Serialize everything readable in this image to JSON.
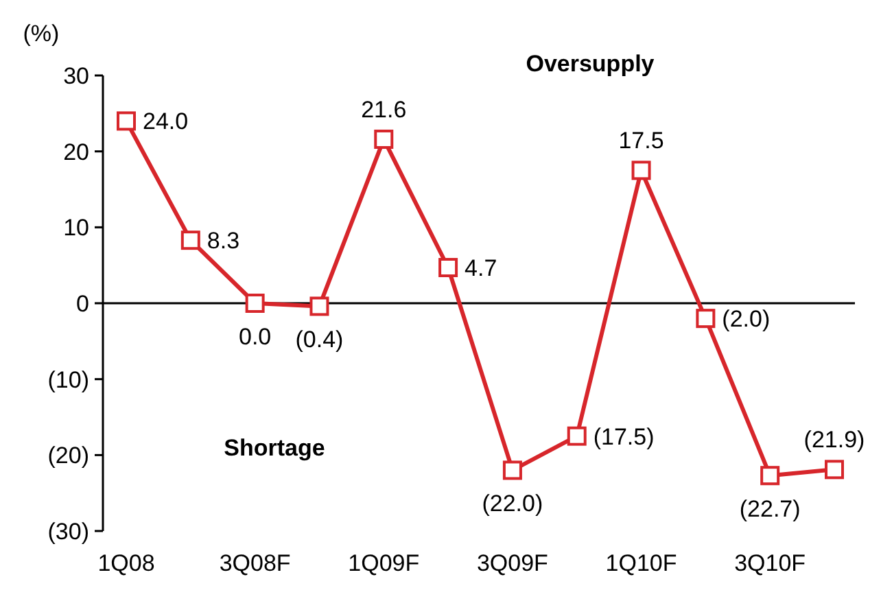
{
  "chart_data": {
    "type": "line",
    "ylabel": "(%)",
    "categories": [
      "1Q08",
      null,
      "3Q08F",
      null,
      "1Q09F",
      null,
      "3Q09F",
      null,
      "1Q10F",
      null,
      "3Q10F",
      null
    ],
    "series": [
      {
        "color": "#d7262b",
        "values": [
          24.0,
          8.3,
          0.0,
          -0.4,
          21.6,
          4.7,
          -22.0,
          -17.5,
          17.5,
          -2.0,
          -22.7,
          -21.9
        ],
        "value_labels": [
          "24.0",
          "8.3",
          "0.0",
          "(0.4)",
          "21.6",
          "4.7",
          "(22.0)",
          "(17.5)",
          "17.5",
          "(2.0)",
          "(22.7)",
          "(21.9)"
        ]
      }
    ],
    "ylim": [
      -30,
      30
    ],
    "yticks": [
      {
        "value": -30,
        "label": "(30)"
      },
      {
        "value": -20,
        "label": "(20)"
      },
      {
        "value": -10,
        "label": "(10)"
      },
      0,
      10,
      20,
      30
    ],
    "annotations": [
      "Oversupply",
      "Shortage"
    ],
    "marker": "square",
    "line_style": "solid"
  }
}
